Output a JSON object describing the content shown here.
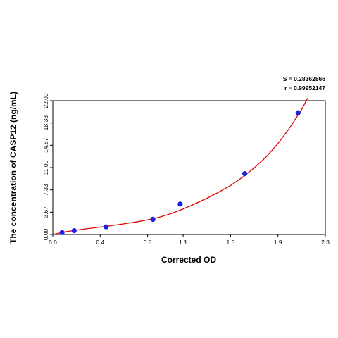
{
  "chart_data": {
    "type": "scatter",
    "xlabel": "Corrected OD",
    "ylabel": "The concentration of CASP12 (ng/mL)",
    "xlim": [
      0.0,
      2.3
    ],
    "ylim": [
      0.0,
      22.0
    ],
    "x_ticks": [
      0.0,
      0.4,
      0.8,
      1.1,
      1.5,
      1.9,
      2.3
    ],
    "x_tick_labels": [
      "0.0",
      "0.4",
      "0.8",
      "1.1",
      "1.5",
      "1.9",
      "2.3"
    ],
    "y_ticks": [
      0.0,
      3.67,
      7.33,
      11.0,
      14.67,
      18.33,
      22.0
    ],
    "y_tick_labels": [
      "0.00",
      "3.67",
      "7.33",
      "11.00",
      "14.67",
      "18.33",
      "22.00"
    ],
    "grid": false,
    "points_color": "#1f1fe0",
    "curve_color": "#e00000",
    "annotations": [
      "S = 0.28362866",
      "r = 0.99952147"
    ],
    "series": [
      {
        "x": [
          0.078,
          0.18,
          0.45,
          0.845,
          1.075,
          1.62,
          2.07
        ],
        "y": [
          0.32,
          0.63,
          1.25,
          2.5,
          5.0,
          10.0,
          20.0
        ]
      }
    ],
    "fit_curve": {
      "x": [
        0.0,
        0.1,
        0.2,
        0.3,
        0.4,
        0.5,
        0.6,
        0.7,
        0.8,
        0.9,
        1.0,
        1.1,
        1.2,
        1.3,
        1.4,
        1.5,
        1.6,
        1.7,
        1.8,
        1.9,
        2.0,
        2.1,
        2.15
      ],
      "y": [
        0.0,
        0.42,
        0.72,
        0.98,
        1.22,
        1.48,
        1.75,
        2.05,
        2.4,
        2.85,
        3.45,
        4.2,
        5.05,
        5.95,
        6.95,
        8.05,
        9.4,
        10.95,
        12.75,
        14.95,
        17.55,
        20.55,
        22.4
      ]
    }
  }
}
